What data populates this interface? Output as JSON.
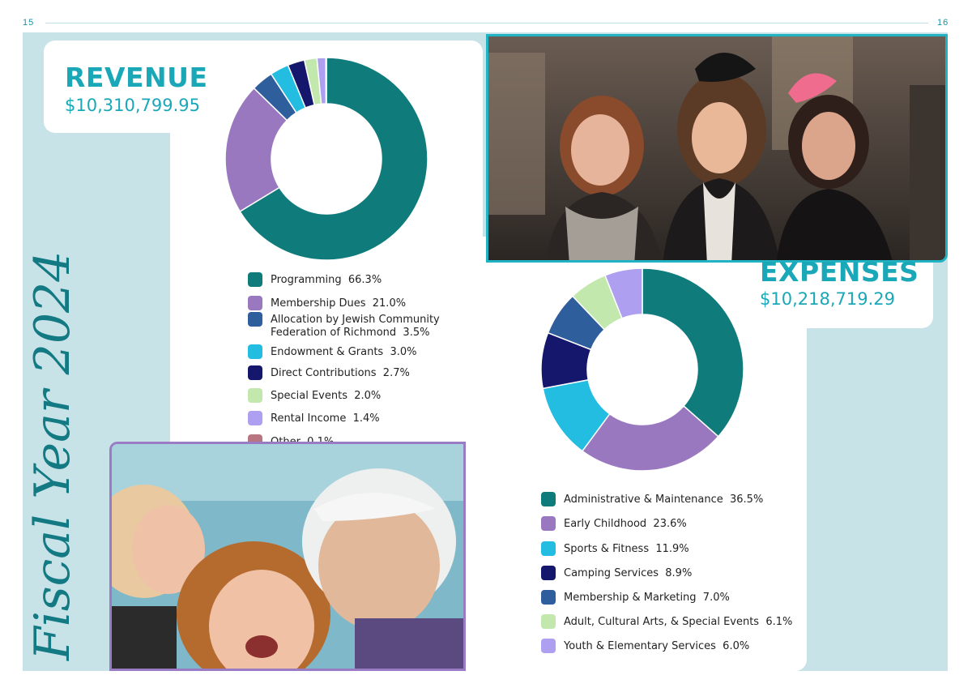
{
  "page": {
    "left_number": "15",
    "right_number": "16",
    "side_title": "Fiscal Year 2024"
  },
  "revenue": {
    "heading": "REVENUE",
    "total": "$10,310,799.95",
    "items": [
      {
        "label": "Programming",
        "pct_text": "66.3%",
        "value": 66.3,
        "color": "#0f7b7b"
      },
      {
        "label": "Membership Dues",
        "pct_text": "21.0%",
        "value": 21.0,
        "color": "#9a78c0"
      },
      {
        "label": "Allocation by Jewish Community Federation of Richmond",
        "pct_text": "3.5%",
        "value": 3.5,
        "color": "#2e5e9c"
      },
      {
        "label": "Endowment & Grants",
        "pct_text": "3.0%",
        "value": 3.0,
        "color": "#22bde0"
      },
      {
        "label": "Direct Contributions",
        "pct_text": "2.7%",
        "value": 2.7,
        "color": "#14176b"
      },
      {
        "label": "Special Events",
        "pct_text": "2.0%",
        "value": 2.0,
        "color": "#c2e8ae"
      },
      {
        "label": "Rental Income",
        "pct_text": "1.4%",
        "value": 1.4,
        "color": "#ae9ff0"
      },
      {
        "label": "Other",
        "pct_text": "0.1%",
        "value": 0.1,
        "color": "#b87582"
      }
    ]
  },
  "expenses": {
    "heading": "EXPENSES",
    "total": "$10,218,719.29",
    "items": [
      {
        "label": "Administrative & Maintenance",
        "pct_text": "36.5%",
        "value": 36.5,
        "color": "#0f7b7b"
      },
      {
        "label": "Early Childhood",
        "pct_text": "23.6%",
        "value": 23.6,
        "color": "#9a78c0"
      },
      {
        "label": "Sports & Fitness",
        "pct_text": "11.9%",
        "value": 11.9,
        "color": "#22bde0"
      },
      {
        "label": "Camping Services",
        "pct_text": "8.9%",
        "value": 8.9,
        "color": "#14176b"
      },
      {
        "label": "Membership & Marketing",
        "pct_text": "7.0%",
        "value": 7.0,
        "color": "#2e5e9c"
      },
      {
        "label": "Adult, Cultural Arts, & Special Events",
        "pct_text": "6.1%",
        "value": 6.1,
        "color": "#c2e8ae"
      },
      {
        "label": "Youth & Elementary Services",
        "pct_text": "6.0%",
        "value": 6.0,
        "color": "#ae9ff0"
      }
    ]
  },
  "chart_data": [
    {
      "type": "pie",
      "categories": [
        "Programming",
        "Membership Dues",
        "Allocation by Jewish Community Federation of Richmond",
        "Endowment & Grants",
        "Direct Contributions",
        "Special Events",
        "Rental Income",
        "Other"
      ],
      "values": [
        66.3,
        21.0,
        3.5,
        3.0,
        2.7,
        2.0,
        1.4,
        0.1
      ],
      "title": "REVENUE",
      "subtitle": "$10,310,799.95"
    },
    {
      "type": "pie",
      "categories": [
        "Administrative & Maintenance",
        "Early Childhood",
        "Sports & Fitness",
        "Camping Services",
        "Membership & Marketing",
        "Adult, Cultural Arts, & Special Events",
        "Youth & Elementary Services"
      ],
      "values": [
        36.5,
        23.6,
        11.9,
        8.9,
        7.0,
        6.1,
        6.0
      ],
      "title": "EXPENSES",
      "subtitle": "$10,218,719.29"
    }
  ]
}
